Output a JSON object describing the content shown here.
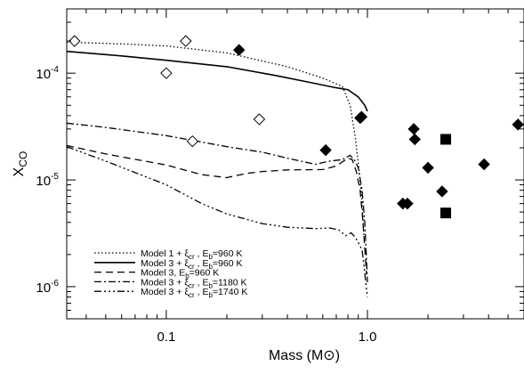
{
  "chart_data": {
    "type": "scatter",
    "title": "",
    "xlabel": "Mass (M⊙)",
    "ylabel": "X",
    "ylabel_sub": "CO",
    "xscale": "log",
    "yscale": "log",
    "xlim": [
      0.032,
      6.0
    ],
    "ylim": [
      5e-07,
      0.0004
    ],
    "x_ticks": [
      {
        "value": 0.1,
        "label": "0.1"
      },
      {
        "value": 1.0,
        "label": "1.0"
      }
    ],
    "y_ticks": [
      {
        "value": 1e-06,
        "base": "10",
        "exp": "-6"
      },
      {
        "value": 1e-05,
        "base": "10",
        "exp": "-5"
      },
      {
        "value": 0.0001,
        "base": "10",
        "exp": "-4"
      }
    ],
    "grid": false,
    "legend_position": "bottom-left",
    "series": [
      {
        "legend": "Model 1 + ξcr , Eb=960 K",
        "label_parts": [
          "Model 1 + ξ",
          "cr",
          " , E",
          "b",
          "=960 K"
        ],
        "dash": "dotted",
        "points": [
          [
            0.032,
            0.000195
          ],
          [
            0.06,
            0.000188
          ],
          [
            0.1,
            0.00018
          ],
          [
            0.2,
            0.000155
          ],
          [
            0.4,
            0.000115
          ],
          [
            0.6,
            9e-05
          ],
          [
            0.75,
            7.5e-05
          ],
          [
            0.82,
            5e-05
          ],
          [
            0.87,
            2.5e-05
          ],
          [
            0.91,
            1.2e-05
          ],
          [
            0.94,
            6e-06
          ],
          [
            0.96,
            3e-06
          ]
        ]
      },
      {
        "legend": "Model 3 + ξcr , Eb=960 K",
        "label_parts": [
          "Model 3 + ξ",
          "cr",
          " , E",
          "b",
          "=960  K"
        ],
        "dash": "solid",
        "points": [
          [
            0.032,
            0.00016
          ],
          [
            0.06,
            0.000145
          ],
          [
            0.1,
            0.000132
          ],
          [
            0.2,
            0.000115
          ],
          [
            0.35,
            9.5e-05
          ],
          [
            0.5,
            8.3e-05
          ],
          [
            0.7,
            7.3e-05
          ],
          [
            0.8,
            7e-05
          ],
          [
            0.9,
            6e-05
          ],
          [
            0.97,
            5e-05
          ],
          [
            1.0,
            4.4e-05
          ]
        ]
      },
      {
        "legend": "Model 3, Eb=960 K",
        "label_parts": [
          "Model 3, E",
          "b",
          "=960  K",
          "",
          ""
        ],
        "dash": "dashed",
        "points": [
          [
            0.032,
            2.1e-05
          ],
          [
            0.05,
            1.75e-05
          ],
          [
            0.1,
            1.38e-05
          ],
          [
            0.15,
            1.12e-05
          ],
          [
            0.2,
            1.05e-05
          ],
          [
            0.25,
            1.15e-05
          ],
          [
            0.3,
            1.2e-05
          ],
          [
            0.4,
            1.24e-05
          ],
          [
            0.6,
            1.25e-05
          ],
          [
            0.7,
            1.35e-05
          ],
          [
            0.8,
            1.6e-05
          ],
          [
            0.84,
            1.55e-05
          ],
          [
            0.88,
            1.2e-05
          ],
          [
            0.92,
            8e-06
          ],
          [
            0.95,
            4e-06
          ],
          [
            0.97,
            2.3e-06
          ],
          [
            0.99,
            1.3e-06
          ]
        ]
      },
      {
        "legend": "Model 3 + ξcr , Eb=1180 K",
        "label_parts": [
          "Model 3 + ξ",
          "cr",
          " , E",
          "b",
          "=1180 K"
        ],
        "dash": "dashdot",
        "points": [
          [
            0.032,
            3.4e-05
          ],
          [
            0.05,
            3.1e-05
          ],
          [
            0.1,
            2.6e-05
          ],
          [
            0.2,
            2.05e-05
          ],
          [
            0.3,
            1.82e-05
          ],
          [
            0.4,
            1.6e-05
          ],
          [
            0.55,
            1.4e-05
          ],
          [
            0.65,
            1.5e-05
          ],
          [
            0.75,
            1.55e-05
          ],
          [
            0.82,
            1.7e-05
          ],
          [
            0.86,
            1.55e-05
          ],
          [
            0.9,
            1.3e-05
          ],
          [
            0.94,
            8e-06
          ],
          [
            0.97,
            4e-06
          ],
          [
            0.99,
            1.8e-06
          ],
          [
            1.0,
            1.1e-06
          ]
        ]
      },
      {
        "legend": "Model 3 + ξcr , Eb=1740 K",
        "label_parts": [
          "Model 3 + ξ",
          "cr",
          " , E",
          "b",
          "=1740 K"
        ],
        "dash": "dashdotdotdot",
        "points": [
          [
            0.032,
            2.05e-05
          ],
          [
            0.05,
            1.5e-05
          ],
          [
            0.1,
            9e-06
          ],
          [
            0.15,
            6e-06
          ],
          [
            0.2,
            4.8e-06
          ],
          [
            0.3,
            3.9e-06
          ],
          [
            0.4,
            3.6e-06
          ],
          [
            0.55,
            3.5e-06
          ],
          [
            0.65,
            3.55e-06
          ],
          [
            0.72,
            3.4e-06
          ],
          [
            0.78,
            3e-06
          ],
          [
            0.83,
            3.2e-06
          ],
          [
            0.87,
            2.9e-06
          ],
          [
            0.91,
            2.5e-06
          ],
          [
            0.94,
            2.2e-06
          ],
          [
            0.96,
            1.6e-06
          ],
          [
            0.98,
            1.1e-06
          ],
          [
            1.0,
            8e-07
          ]
        ]
      }
    ],
    "markers": [
      {
        "shape": "open-diamond",
        "x": 0.035,
        "y": 0.0002
      },
      {
        "shape": "open-diamond",
        "x": 0.1,
        "y": 0.0001
      },
      {
        "shape": "open-diamond",
        "x": 0.125,
        "y": 0.0002
      },
      {
        "shape": "open-diamond",
        "x": 0.135,
        "y": 2.3e-05
      },
      {
        "shape": "open-diamond",
        "x": 0.29,
        "y": 3.7e-05
      },
      {
        "shape": "filled-diamond",
        "x": 0.23,
        "y": 0.000165
      },
      {
        "shape": "filled-diamond",
        "x": 0.62,
        "y": 1.9e-05
      },
      {
        "shape": "filled-diamond",
        "x": 0.92,
        "y": 3.8e-05
      },
      {
        "shape": "filled-diamond",
        "x": 0.935,
        "y": 3.9e-05
      },
      {
        "shape": "filled-diamond",
        "x": 1.5,
        "y": 6e-06
      },
      {
        "shape": "filled-diamond",
        "x": 1.58,
        "y": 6e-06
      },
      {
        "shape": "filled-diamond",
        "x": 1.7,
        "y": 3e-05
      },
      {
        "shape": "filled-diamond",
        "x": 1.72,
        "y": 2.4e-05
      },
      {
        "shape": "filled-diamond",
        "x": 2.0,
        "y": 1.3e-05
      },
      {
        "shape": "filled-diamond",
        "x": 2.35,
        "y": 7.8e-06
      },
      {
        "shape": "filled-diamond",
        "x": 3.8,
        "y": 1.4e-05
      },
      {
        "shape": "filled-diamond",
        "x": 5.6,
        "y": 3.3e-05
      },
      {
        "shape": "filled-square",
        "x": 2.45,
        "y": 2.4e-05
      },
      {
        "shape": "filled-square",
        "x": 2.45,
        "y": 4.9e-06
      }
    ]
  }
}
